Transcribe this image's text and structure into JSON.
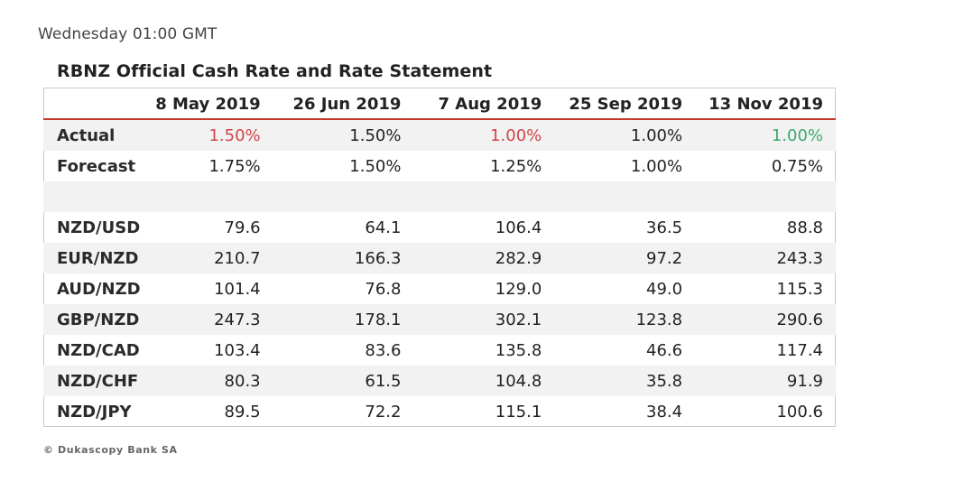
{
  "timestamp": "Wednesday 01:00 GMT",
  "table": {
    "title": "RBNZ Official Cash Rate and Rate Statement",
    "headers": [
      "",
      "8 May 2019",
      "26 Jun 2019",
      "7 Aug 2019",
      "25 Sep 2019",
      "13 Nov 2019"
    ],
    "actual": {
      "label": "Actual",
      "values": [
        "1.50%",
        "1.50%",
        "1.00%",
        "1.00%",
        "1.00%"
      ]
    },
    "forecast": {
      "label": "Forecast",
      "values": [
        "1.75%",
        "1.50%",
        "1.25%",
        "1.00%",
        "0.75%"
      ]
    },
    "pairs": [
      {
        "label": "NZD/USD",
        "values": [
          "79.6",
          "64.1",
          "106.4",
          "36.5",
          "88.8"
        ]
      },
      {
        "label": "EUR/NZD",
        "values": [
          "210.7",
          "166.3",
          "282.9",
          "97.2",
          "243.3"
        ]
      },
      {
        "label": "AUD/NZD",
        "values": [
          "101.4",
          "76.8",
          "129.0",
          "49.0",
          "115.3"
        ]
      },
      {
        "label": "GBP/NZD",
        "values": [
          "247.3",
          "178.1",
          "302.1",
          "123.8",
          "290.6"
        ]
      },
      {
        "label": "NZD/CAD",
        "values": [
          "103.4",
          "83.6",
          "135.8",
          "46.6",
          "117.4"
        ]
      },
      {
        "label": "NZD/CHF",
        "values": [
          "80.3",
          "61.5",
          "104.8",
          "35.8",
          "91.9"
        ]
      },
      {
        "label": "NZD/JPY",
        "values": [
          "89.5",
          "72.2",
          "115.1",
          "38.4",
          "100.6"
        ]
      }
    ]
  },
  "colors": {
    "header_rule": "#c0392b",
    "below_forecast": "#d0454a",
    "matches_forecast_after_cut": "#3aaa6a",
    "row_shade": "#f2f2f2"
  },
  "footer": "© Dukascopy Bank SA"
}
